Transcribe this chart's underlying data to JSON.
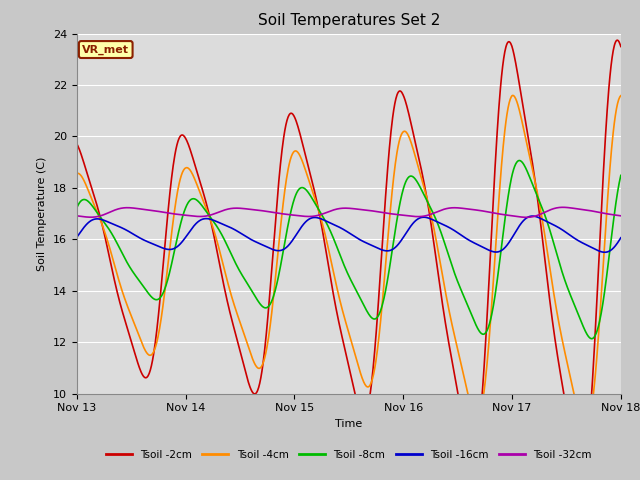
{
  "title": "Soil Temperatures Set 2",
  "xlabel": "Time",
  "ylabel": "Soil Temperature (C)",
  "ylim": [
    10,
    24
  ],
  "xlim": [
    0,
    5
  ],
  "x_tick_positions": [
    0,
    1,
    2,
    3,
    4,
    5
  ],
  "x_tick_labels": [
    "Nov 13",
    "Nov 14",
    "Nov 15",
    "Nov 16",
    "Nov 17",
    "Nov 18"
  ],
  "y_tick_positions": [
    10,
    12,
    14,
    16,
    18,
    20,
    22,
    24
  ],
  "fig_facecolor": "#c8c8c8",
  "plot_facecolor": "#dcdcdc",
  "grid_color": "#ffffff",
  "annotation_text": "VR_met",
  "annotation_bg": "#ffffaa",
  "annotation_border": "#8b2000",
  "colors": {
    "Tsoil -2cm": "#cc0000",
    "Tsoil -4cm": "#ff8c00",
    "Tsoil -8cm": "#00bb00",
    "Tsoil -16cm": "#0000cc",
    "Tsoil -32cm": "#aa00aa"
  },
  "series_labels": [
    "Tsoil -2cm",
    "Tsoil -4cm",
    "Tsoil -8cm",
    "Tsoil -16cm",
    "Tsoil -32cm"
  ]
}
